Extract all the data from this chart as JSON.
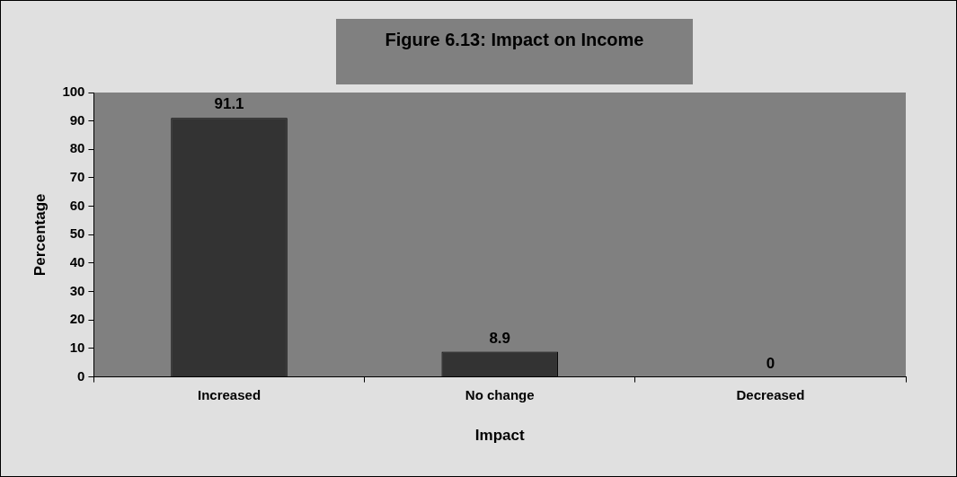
{
  "chart_data": {
    "type": "bar",
    "title": "Figure 6.13: Impact on Income",
    "xlabel": "Impact",
    "ylabel": "Percentage",
    "categories": [
      "Increased",
      "No change",
      "Decreased"
    ],
    "values": [
      91.1,
      8.9,
      0
    ],
    "color": "#333333",
    "ylim": [
      0,
      100
    ],
    "yticks": [
      0,
      10,
      20,
      30,
      40,
      50,
      60,
      70,
      80,
      90,
      100
    ],
    "grid": false,
    "legend": false,
    "data_labels": true
  }
}
